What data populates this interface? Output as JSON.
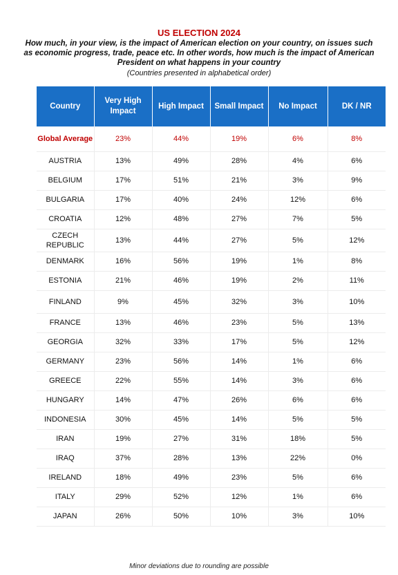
{
  "header": {
    "title": "US ELECTION 2024",
    "question": "How much, in your view, is the impact of American election on your country, on issues such as economic progress, trade, peace etc. In other words, how much is the impact of American President on what happens in your country",
    "note": "(Countries presented in alphabetical order)"
  },
  "table": {
    "columns": [
      "Country",
      "Very High Impact",
      "High Impact",
      "Small Impact",
      "No Impact",
      "DK / NR"
    ],
    "global": {
      "country": "Global Average",
      "values": [
        "23%",
        "44%",
        "19%",
        "6%",
        "8%"
      ]
    },
    "rows": [
      {
        "country": "AUSTRIA",
        "values": [
          "13%",
          "49%",
          "28%",
          "4%",
          "6%"
        ]
      },
      {
        "country": "BELGIUM",
        "values": [
          "17%",
          "51%",
          "21%",
          "3%",
          "9%"
        ]
      },
      {
        "country": "BULGARIA",
        "values": [
          "17%",
          "40%",
          "24%",
          "12%",
          "6%"
        ]
      },
      {
        "country": "CROATIA",
        "values": [
          "12%",
          "48%",
          "27%",
          "7%",
          "5%"
        ]
      },
      {
        "country": "CZECH REPUBLIC",
        "values": [
          "13%",
          "44%",
          "27%",
          "5%",
          "12%"
        ]
      },
      {
        "country": "DENMARK",
        "values": [
          "16%",
          "56%",
          "19%",
          "1%",
          "8%"
        ]
      },
      {
        "country": "ESTONIA",
        "values": [
          "21%",
          "46%",
          "19%",
          "2%",
          "11%"
        ]
      },
      {
        "country": "FINLAND",
        "values": [
          "9%",
          "45%",
          "32%",
          "3%",
          "10%"
        ]
      },
      {
        "country": "FRANCE",
        "values": [
          "13%",
          "46%",
          "23%",
          "5%",
          "13%"
        ]
      },
      {
        "country": "GEORGIA",
        "values": [
          "32%",
          "33%",
          "17%",
          "5%",
          "12%"
        ]
      },
      {
        "country": "GERMANY",
        "values": [
          "23%",
          "56%",
          "14%",
          "1%",
          "6%"
        ]
      },
      {
        "country": "GREECE",
        "values": [
          "22%",
          "55%",
          "14%",
          "3%",
          "6%"
        ]
      },
      {
        "country": "HUNGARY",
        "values": [
          "14%",
          "47%",
          "26%",
          "6%",
          "6%"
        ]
      },
      {
        "country": "INDONESIA",
        "values": [
          "30%",
          "45%",
          "14%",
          "5%",
          "5%"
        ]
      },
      {
        "country": "IRAN",
        "values": [
          "19%",
          "27%",
          "31%",
          "18%",
          "5%"
        ]
      },
      {
        "country": "IRAQ",
        "values": [
          "37%",
          "28%",
          "13%",
          "22%",
          "0%"
        ]
      },
      {
        "country": "IRELAND",
        "values": [
          "18%",
          "49%",
          "23%",
          "5%",
          "6%"
        ]
      },
      {
        "country": "ITALY",
        "values": [
          "29%",
          "52%",
          "12%",
          "1%",
          "6%"
        ]
      },
      {
        "country": "JAPAN",
        "values": [
          "26%",
          "50%",
          "10%",
          "3%",
          "10%"
        ]
      }
    ]
  },
  "footer": {
    "text": "Minor deviations due to rounding are possible"
  },
  "colors": {
    "header_bg": "#1a6fc6",
    "accent_red": "#c00000"
  }
}
